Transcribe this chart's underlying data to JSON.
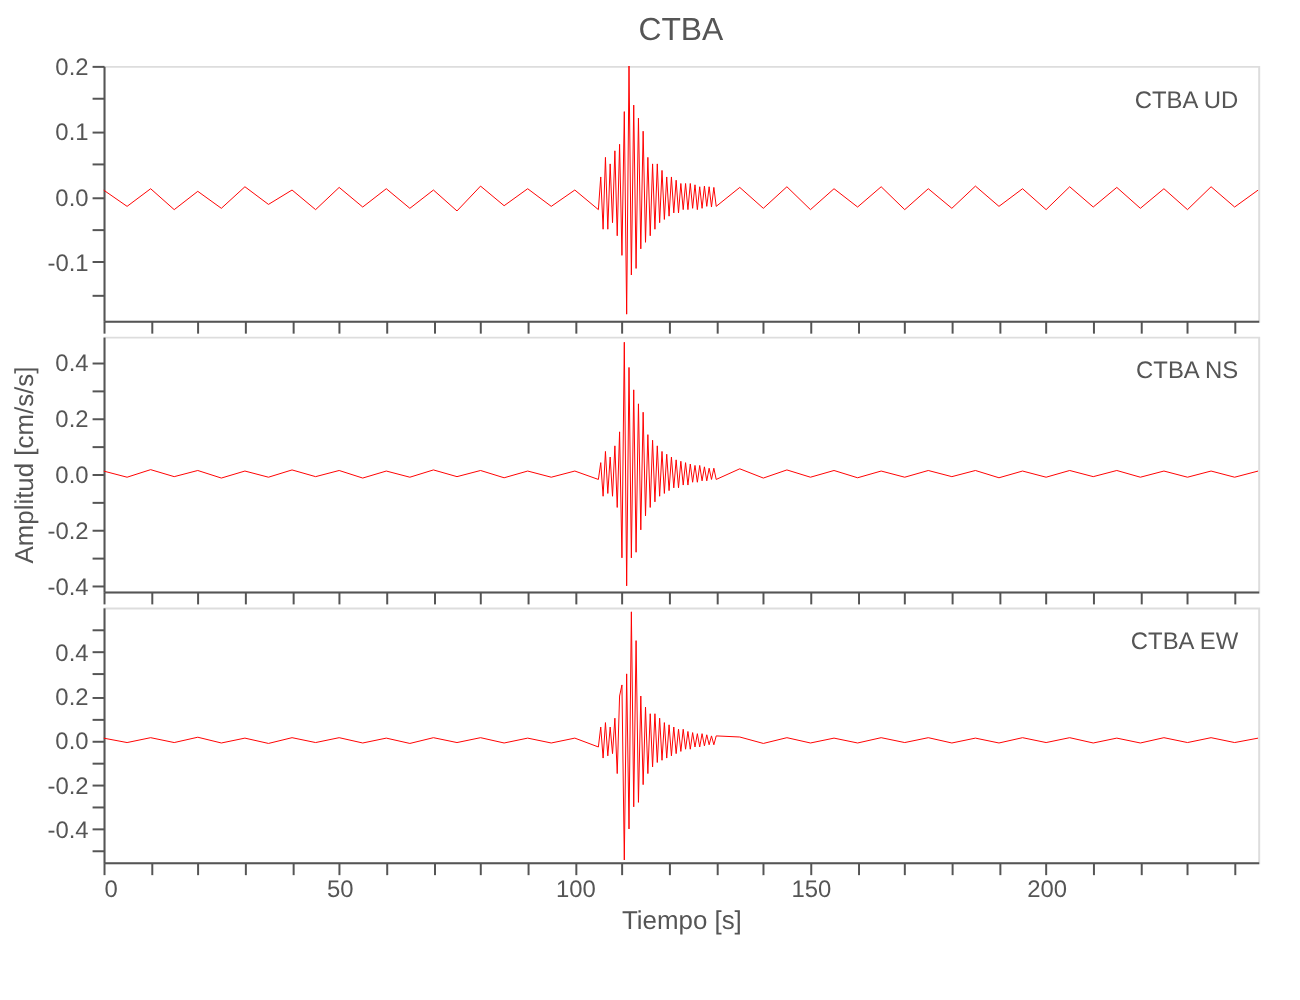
{
  "chart_data": [
    {
      "type": "line",
      "title": "CTBA",
      "annotations": [
        "CTBA UD"
      ],
      "tick_labels": "y",
      "xlim": [
        0,
        245
      ],
      "ylim": [
        -0.19,
        0.2
      ],
      "xticks": [
        0,
        {
          "value": 10,
          "label": null
        },
        {
          "value": 20,
          "label": null
        },
        {
          "value": 30,
          "label": null
        },
        {
          "value": 40,
          "label": null
        },
        50,
        {
          "value": 60,
          "label": null
        },
        {
          "value": 70,
          "label": null
        },
        {
          "value": 80,
          "label": null
        },
        {
          "value": 90,
          "label": null
        },
        100,
        {
          "value": 110,
          "label": null
        },
        {
          "value": 120,
          "label": null
        },
        {
          "value": 130,
          "label": null
        },
        {
          "value": 140,
          "label": null
        },
        150,
        {
          "value": 160,
          "label": null
        },
        {
          "value": 170,
          "label": null
        },
        {
          "value": 180,
          "label": null
        },
        {
          "value": 190,
          "label": null
        },
        200,
        {
          "value": 210,
          "label": null
        },
        {
          "value": 220,
          "label": null
        },
        {
          "value": 230,
          "label": null
        },
        {
          "value": 240,
          "label": null
        }
      ],
      "yticks": [
        {
          "value": -0.15,
          "label": null
        },
        -0.1,
        {
          "value": -0.05,
          "label": null
        },
        {
          "value": 0,
          "label": "0.0"
        },
        {
          "value": 0.05,
          "label": null
        },
        0.1,
        {
          "value": 0.15,
          "label": null
        },
        0.2
      ],
      "x": [
        0,
        5,
        10,
        15,
        20,
        25,
        30,
        35,
        40,
        45,
        50,
        55,
        60,
        65,
        70,
        75,
        80,
        85,
        90,
        95,
        100,
        105,
        105.5,
        106,
        106.5,
        107,
        107.5,
        108,
        108.5,
        109,
        109.5,
        110,
        110.5,
        111,
        111.5,
        112,
        112.5,
        113,
        113.5,
        114,
        114.5,
        115,
        115.5,
        116,
        116.5,
        117,
        117.5,
        118,
        118.5,
        119,
        119.5,
        120,
        120.5,
        121,
        121.5,
        122,
        122.5,
        123,
        123.5,
        124,
        124.5,
        125,
        125.5,
        126,
        126.5,
        127,
        127.5,
        128,
        128.5,
        129,
        129.5,
        130,
        135,
        140,
        145,
        150,
        155,
        160,
        165,
        170,
        175,
        180,
        185,
        190,
        195,
        200,
        205,
        210,
        215,
        220,
        225,
        230,
        235,
        240,
        245
      ],
      "series": [
        {
          "color": "#ff0000",
          "values": [
            0.01,
            -0.015,
            0.012,
            -0.02,
            0.008,
            -0.018,
            0.015,
            -0.012,
            0.01,
            -0.02,
            0.014,
            -0.016,
            0.012,
            -0.018,
            0.01,
            -0.022,
            0.016,
            -0.014,
            0.012,
            -0.015,
            0.01,
            -0.02,
            0.03,
            -0.05,
            0.06,
            -0.05,
            0.05,
            -0.04,
            0.07,
            -0.06,
            0.08,
            -0.09,
            0.13,
            -0.18,
            0.2,
            -0.12,
            0.14,
            -0.11,
            0.12,
            -0.08,
            0.1,
            -0.07,
            0.06,
            -0.06,
            0.05,
            -0.05,
            0.05,
            -0.04,
            0.04,
            -0.035,
            0.03,
            -0.03,
            0.03,
            -0.025,
            0.025,
            -0.025,
            0.02,
            -0.02,
            0.02,
            -0.02,
            0.02,
            -0.018,
            0.018,
            -0.02,
            0.015,
            -0.018,
            0.016,
            -0.015,
            0.015,
            -0.016,
            0.014,
            -0.015,
            0.014,
            -0.018,
            0.015,
            -0.02,
            0.012,
            -0.016,
            0.015,
            -0.02,
            0.012,
            -0.018,
            0.016,
            -0.015,
            0.012,
            -0.02,
            0.015,
            -0.016,
            0.014,
            -0.018,
            0.012,
            -0.02,
            0.015,
            -0.016,
            0.01
          ]
        }
      ]
    },
    {
      "type": "line",
      "ylabel": "Amplitud [cm/s/s]",
      "annotations": [
        "CTBA NS"
      ],
      "tick_labels": "y",
      "xlim": [
        0,
        245
      ],
      "ylim": [
        -0.42,
        0.49
      ],
      "xticks": [
        0,
        {
          "value": 10,
          "label": null
        },
        {
          "value": 20,
          "label": null
        },
        {
          "value": 30,
          "label": null
        },
        {
          "value": 40,
          "label": null
        },
        50,
        {
          "value": 60,
          "label": null
        },
        {
          "value": 70,
          "label": null
        },
        {
          "value": 80,
          "label": null
        },
        {
          "value": 90,
          "label": null
        },
        100,
        {
          "value": 110,
          "label": null
        },
        {
          "value": 120,
          "label": null
        },
        {
          "value": 130,
          "label": null
        },
        {
          "value": 140,
          "label": null
        },
        150,
        {
          "value": 160,
          "label": null
        },
        {
          "value": 170,
          "label": null
        },
        {
          "value": 180,
          "label": null
        },
        {
          "value": 190,
          "label": null
        },
        200,
        {
          "value": 210,
          "label": null
        },
        {
          "value": 220,
          "label": null
        },
        {
          "value": 230,
          "label": null
        },
        {
          "value": 240,
          "label": null
        }
      ],
      "yticks": [
        -0.4,
        {
          "value": -0.3,
          "label": null
        },
        -0.2,
        {
          "value": -0.1,
          "label": null
        },
        {
          "value": 0,
          "label": "0.0"
        },
        {
          "value": 0.1,
          "label": null
        },
        0.2,
        {
          "value": 0.3,
          "label": null
        },
        0.4
      ],
      "x": [
        0,
        5,
        10,
        15,
        20,
        25,
        30,
        35,
        40,
        45,
        50,
        55,
        60,
        65,
        70,
        75,
        80,
        85,
        90,
        95,
        100,
        105,
        105.5,
        106,
        106.5,
        107,
        107.5,
        108,
        108.5,
        109,
        109.5,
        110,
        110.5,
        111,
        111.5,
        112,
        112.5,
        113,
        113.5,
        114,
        114.5,
        115,
        115.5,
        116,
        116.5,
        117,
        117.5,
        118,
        118.5,
        119,
        119.5,
        120,
        120.5,
        121,
        121.5,
        122,
        122.5,
        123,
        123.5,
        124,
        124.5,
        125,
        125.5,
        126,
        126.5,
        127,
        127.5,
        128,
        128.5,
        129,
        129.5,
        130,
        135,
        140,
        145,
        150,
        155,
        160,
        165,
        170,
        175,
        180,
        185,
        190,
        195,
        200,
        205,
        210,
        215,
        220,
        225,
        230,
        235,
        240,
        245
      ],
      "series": [
        {
          "color": "#ff0000",
          "values": [
            0.01,
            -0.012,
            0.015,
            -0.01,
            0.012,
            -0.015,
            0.01,
            -0.012,
            0.014,
            -0.01,
            0.012,
            -0.015,
            0.01,
            -0.012,
            0.014,
            -0.01,
            0.012,
            -0.014,
            0.01,
            -0.012,
            0.01,
            -0.02,
            0.04,
            -0.08,
            0.08,
            -0.07,
            0.06,
            -0.08,
            0.1,
            -0.12,
            0.15,
            -0.3,
            0.47,
            -0.4,
            0.38,
            -0.3,
            0.3,
            -0.28,
            0.25,
            -0.2,
            0.22,
            -0.15,
            0.14,
            -0.12,
            0.12,
            -0.1,
            0.1,
            -0.08,
            0.08,
            -0.07,
            0.07,
            -0.06,
            0.06,
            -0.05,
            0.05,
            -0.05,
            0.045,
            -0.04,
            0.04,
            -0.04,
            0.035,
            -0.03,
            0.03,
            -0.03,
            0.03,
            -0.025,
            0.025,
            -0.025,
            0.02,
            -0.02,
            0.02,
            -0.02,
            0.018,
            -0.015,
            0.014,
            -0.012,
            0.012,
            -0.014,
            0.01,
            -0.012,
            0.012,
            -0.01,
            0.012,
            -0.014,
            0.01,
            -0.012,
            0.012,
            -0.01,
            0.012,
            -0.012,
            0.01,
            -0.012,
            0.01,
            -0.012,
            0.01
          ]
        }
      ]
    },
    {
      "type": "line",
      "xlabel": "Tiempo [s]",
      "annotations": [
        "CTBA EW"
      ],
      "xlim": [
        0,
        245
      ],
      "ylim": [
        -0.55,
        0.6
      ],
      "xticks": [
        0,
        {
          "value": 10,
          "label": null
        },
        {
          "value": 20,
          "label": null
        },
        {
          "value": 30,
          "label": null
        },
        {
          "value": 40,
          "label": null
        },
        50,
        {
          "value": 60,
          "label": null
        },
        {
          "value": 70,
          "label": null
        },
        {
          "value": 80,
          "label": null
        },
        {
          "value": 90,
          "label": null
        },
        100,
        {
          "value": 110,
          "label": null
        },
        {
          "value": 120,
          "label": null
        },
        {
          "value": 130,
          "label": null
        },
        {
          "value": 140,
          "label": null
        },
        150,
        {
          "value": 160,
          "label": null
        },
        {
          "value": 170,
          "label": null
        },
        {
          "value": 180,
          "label": null
        },
        {
          "value": 190,
          "label": null
        },
        200,
        {
          "value": 210,
          "label": null
        },
        {
          "value": 220,
          "label": null
        },
        {
          "value": 230,
          "label": null
        },
        {
          "value": 240,
          "label": null
        }
      ],
      "yticks": [
        {
          "value": -0.5,
          "label": null
        },
        -0.4,
        {
          "value": -0.3,
          "label": null
        },
        -0.2,
        {
          "value": -0.1,
          "label": null
        },
        {
          "value": 0,
          "label": "0.0"
        },
        {
          "value": 0.1,
          "label": null
        },
        0.2,
        {
          "value": 0.3,
          "label": null
        },
        0.4,
        {
          "value": 0.5,
          "label": null
        }
      ],
      "x": [
        0,
        5,
        10,
        15,
        20,
        25,
        30,
        35,
        40,
        45,
        50,
        55,
        60,
        65,
        70,
        75,
        80,
        85,
        90,
        95,
        100,
        105,
        105.5,
        106,
        106.5,
        107,
        107.5,
        108,
        108.5,
        109,
        109.5,
        110,
        110.5,
        111,
        111.5,
        112,
        112.5,
        113,
        113.5,
        114,
        114.5,
        115,
        115.5,
        116,
        116.5,
        117,
        117.5,
        118,
        118.5,
        119,
        119.5,
        120,
        120.5,
        121,
        121.5,
        122,
        122.5,
        123,
        123.5,
        124,
        124.5,
        125,
        125.5,
        126,
        126.5,
        127,
        127.5,
        128,
        128.5,
        129,
        129.5,
        130,
        135,
        140,
        145,
        150,
        155,
        160,
        165,
        170,
        175,
        180,
        185,
        190,
        195,
        200,
        205,
        210,
        215,
        220,
        225,
        230,
        235,
        240,
        245
      ],
      "series": [
        {
          "color": "#ff0000",
          "values": [
            0.01,
            -0.01,
            0.012,
            -0.01,
            0.014,
            -0.012,
            0.01,
            -0.014,
            0.012,
            -0.01,
            0.012,
            -0.012,
            0.01,
            -0.014,
            0.012,
            -0.01,
            0.012,
            -0.012,
            0.01,
            -0.012,
            0.01,
            -0.03,
            0.06,
            -0.08,
            0.08,
            -0.07,
            0.06,
            -0.06,
            0.1,
            -0.15,
            0.2,
            0.25,
            -0.54,
            0.3,
            -0.4,
            0.58,
            -0.3,
            0.45,
            -0.28,
            0.2,
            -0.2,
            0.15,
            -0.15,
            0.12,
            -0.12,
            0.12,
            -0.1,
            0.1,
            -0.09,
            0.08,
            -0.08,
            0.07,
            -0.07,
            0.06,
            -0.06,
            0.05,
            -0.05,
            0.05,
            -0.04,
            0.04,
            -0.04,
            0.035,
            -0.03,
            0.03,
            -0.03,
            0.03,
            -0.025,
            0.025,
            -0.02,
            0.02,
            -0.02,
            0.02,
            0.015,
            -0.014,
            0.012,
            -0.012,
            0.01,
            -0.012,
            0.012,
            -0.01,
            0.012,
            -0.012,
            0.01,
            -0.012,
            0.012,
            -0.01,
            0.012,
            -0.012,
            0.01,
            -0.012,
            0.012,
            -0.01,
            0.012,
            -0.01,
            0.01
          ]
        }
      ]
    }
  ]
}
